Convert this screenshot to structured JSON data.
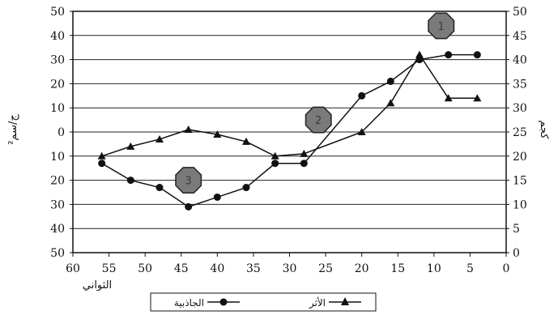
{
  "chart_data": {
    "type": "line",
    "title": "",
    "xlabel": "الثواني",
    "ylabel_left": "ج/سم²",
    "ylabel_right": "كجم",
    "x_ticks": [
      "60",
      "55",
      "50",
      "45",
      "40",
      "35",
      "30",
      "25",
      "20",
      "15",
      "10",
      "5",
      "0"
    ],
    "y_left_ticks": [
      "50",
      "40",
      "30",
      "20",
      "10",
      "0",
      "10",
      "20",
      "30",
      "40",
      "50"
    ],
    "y_right_ticks": [
      "50",
      "45",
      "40",
      "35",
      "30",
      "25",
      "20",
      "15",
      "10",
      "5",
      "0"
    ],
    "xlim": [
      60,
      0
    ],
    "ylim_left": [
      -50,
      50
    ],
    "ylim_right": [
      0,
      50
    ],
    "grid": "horizontal",
    "legend_position": "bottom-center",
    "series": [
      {
        "name": "الأثر",
        "axis": "right",
        "marker": "triangle",
        "color": "#111111",
        "x": [
          56,
          52,
          48,
          44,
          40,
          36,
          32,
          28,
          20,
          16,
          12,
          8,
          4
        ],
        "values": [
          20,
          22,
          23.5,
          25.5,
          24.5,
          23,
          20,
          20.5,
          25,
          31,
          41,
          32,
          32
        ]
      },
      {
        "name": "الجاذبية",
        "axis": "left",
        "marker": "circle",
        "color": "#111111",
        "x": [
          56,
          52,
          48,
          44,
          40,
          36,
          32,
          28,
          20,
          16,
          12,
          8,
          4
        ],
        "values": [
          -13,
          -20,
          -23,
          -31,
          -27,
          -23,
          -13,
          -13,
          15,
          21,
          30,
          32,
          32
        ]
      }
    ],
    "annotations": [
      {
        "label": "3",
        "x": 44,
        "y": -20,
        "axis": "left"
      },
      {
        "label": "2",
        "x": 26,
        "y": 5,
        "axis": "left"
      },
      {
        "label": "1",
        "x": 9,
        "y": 44,
        "axis": "left"
      }
    ]
  }
}
